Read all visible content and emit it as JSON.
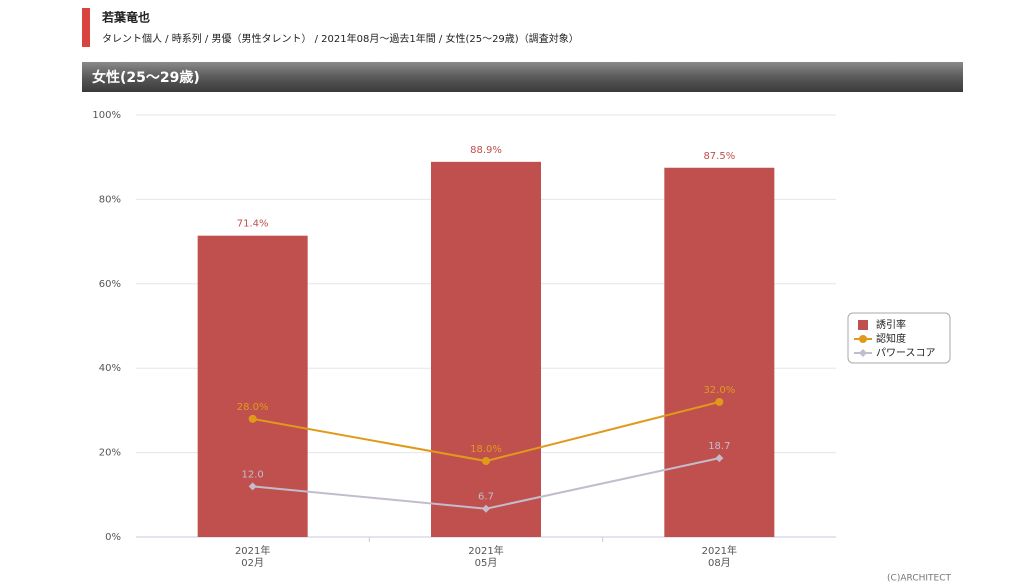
{
  "header": {
    "title": "若葉竜也",
    "subtitle": "タレント個人 / 時系列 / 男優（男性タレント） / 2021年08月〜過去1年間 / 女性(25〜29歳)（調査対象）",
    "section": "女性(25〜29歳)"
  },
  "footer": "(C)ARCHITECT",
  "chart_data": {
    "type": "bar",
    "categories": [
      "2021年\n02月",
      "2021年\n05月",
      "2021年\n08月"
    ],
    "series": [
      {
        "name": "誘引率",
        "type": "bar",
        "color": "#c0504d",
        "values": [
          71.4,
          88.9,
          87.5
        ],
        "value_labels": [
          "71.4%",
          "88.9%",
          "87.5%"
        ]
      },
      {
        "name": "認知度",
        "type": "line",
        "marker": "circle",
        "color": "#e09a1a",
        "values": [
          28.0,
          18.0,
          32.0
        ],
        "value_labels": [
          "28.0%",
          "18.0%",
          "32.0%"
        ]
      },
      {
        "name": "パワースコア",
        "type": "line",
        "marker": "diamond",
        "color": "#c4bccd",
        "values": [
          12.0,
          6.7,
          18.7
        ],
        "value_labels": [
          "12.0",
          "6.7",
          "18.7"
        ]
      }
    ],
    "ylim": [
      0,
      100
    ],
    "yticks": [
      {
        "value": 0,
        "label": "0%"
      },
      {
        "value": 20,
        "label": "20%"
      },
      {
        "value": 40,
        "label": "40%"
      },
      {
        "value": 60,
        "label": "60%"
      },
      {
        "value": 80,
        "label": "80%"
      },
      {
        "value": 100,
        "label": "100%"
      }
    ],
    "grid": true,
    "legend": "right"
  }
}
